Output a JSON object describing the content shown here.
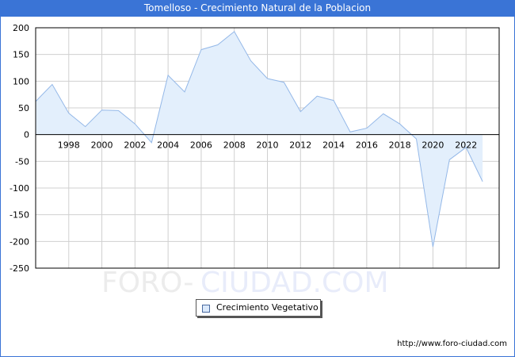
{
  "header": {
    "title": "Tomelloso - Crecimiento Natural de la Poblacion"
  },
  "colors": {
    "title_bg": "#3a74d6",
    "line": "#94b8e8",
    "fill": "#e3effc",
    "grid": "#d0d0d0",
    "axis": "#000000"
  },
  "watermark": {
    "text_left": "FORO-",
    "text_right": "CIUDAD.COM"
  },
  "legend": {
    "label": "Crecimiento Vegetativo"
  },
  "footer": {
    "source_url": "http://www.foro-ciudad.com"
  },
  "chart_data": {
    "type": "area",
    "title": "Tomelloso - Crecimiento Natural de la Poblacion",
    "xlabel": "",
    "ylabel": "",
    "x": [
      1996,
      1997,
      1998,
      1999,
      2000,
      2001,
      2002,
      2003,
      2004,
      2005,
      2006,
      2007,
      2008,
      2009,
      2010,
      2011,
      2012,
      2013,
      2014,
      2015,
      2016,
      2017,
      2018,
      2019,
      2020,
      2021,
      2022,
      2023
    ],
    "series": [
      {
        "name": "Crecimiento Vegetativo",
        "values": [
          62,
          94,
          40,
          15,
          46,
          45,
          20,
          -15,
          111,
          80,
          159,
          168,
          193,
          138,
          105,
          98,
          43,
          72,
          64,
          5,
          12,
          39,
          20,
          -8,
          -210,
          -47,
          -24,
          -88
        ]
      }
    ],
    "x_tick_labels": [
      "1998",
      "2000",
      "2002",
      "2004",
      "2006",
      "2008",
      "2010",
      "2012",
      "2014",
      "2016",
      "2018",
      "2020",
      "2022"
    ],
    "y_tick_labels": [
      "200",
      "150",
      "100",
      "50",
      "0",
      "-50",
      "-100",
      "-150",
      "-200",
      "-250"
    ],
    "ylim": [
      -250,
      200
    ],
    "xlim": [
      1996,
      2024
    ],
    "grid": true,
    "legend_position": "bottom-center"
  }
}
